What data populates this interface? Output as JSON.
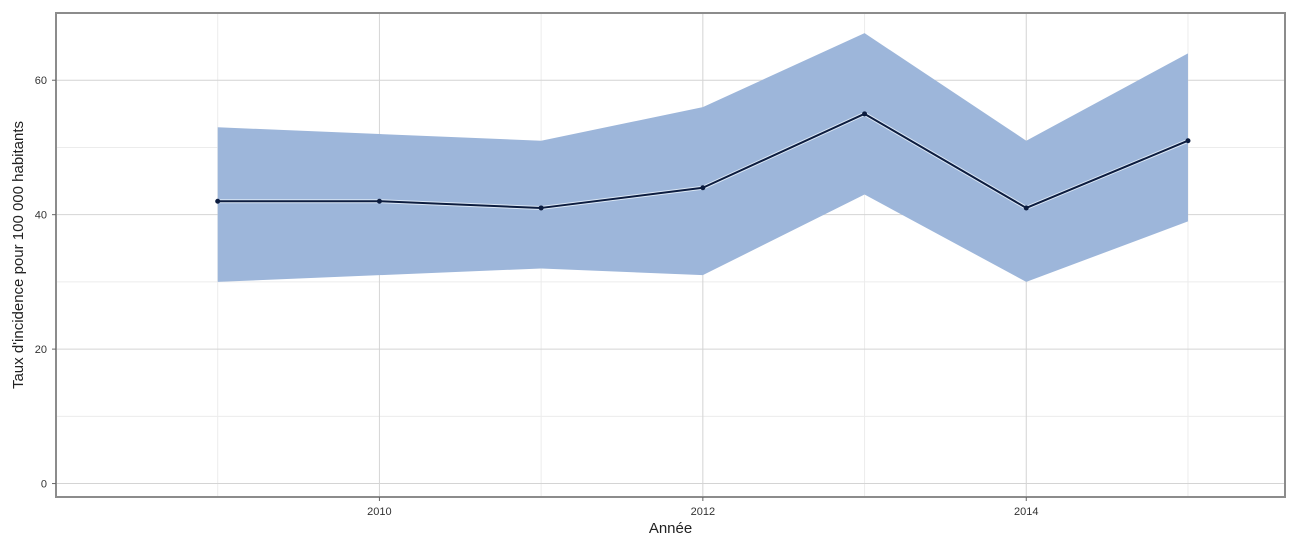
{
  "chart_data": {
    "type": "line",
    "xlabel": "Année",
    "ylabel": "Taux d'incidence pour 100 000 habitants",
    "x": [
      2009,
      2010,
      2011,
      2012,
      2013,
      2014,
      2015
    ],
    "xlim": [
      2008.0,
      2015.6
    ],
    "ylim": [
      -2,
      70
    ],
    "x_ticks": [
      2010,
      2012,
      2014
    ],
    "y_ticks": [
      0,
      20,
      40,
      60
    ],
    "grid": true,
    "legend": "none",
    "series": [
      {
        "values": [
          42,
          42,
          41,
          44,
          55,
          41,
          51
        ],
        "lower": [
          30,
          31,
          32,
          31,
          43,
          30,
          39
        ],
        "upper": [
          53,
          52,
          51,
          56,
          67,
          51,
          64
        ]
      }
    ],
    "colors": {
      "band": "#9db6da",
      "line": "#0c1c3f",
      "grid_major": "#d4d4d4",
      "grid_minor": "#ececec",
      "panel_border": "#8c8c8c"
    }
  }
}
